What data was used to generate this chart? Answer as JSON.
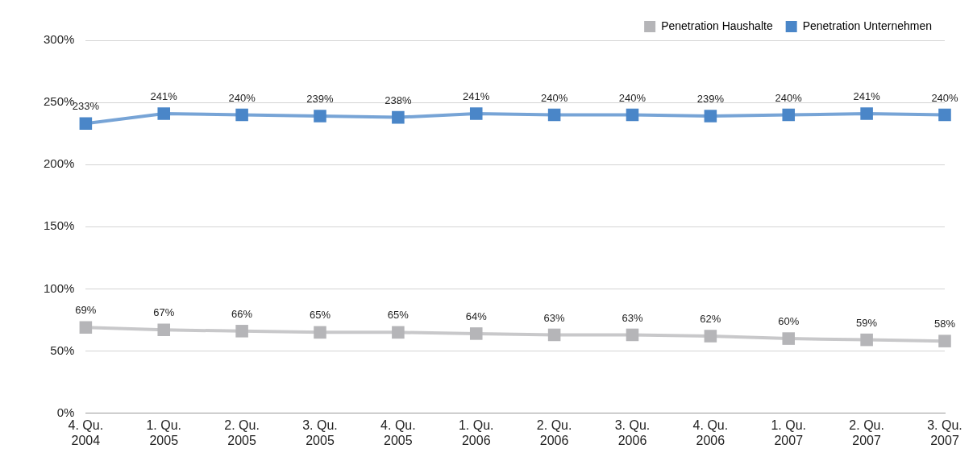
{
  "chart_data": {
    "type": "line",
    "categories": [
      "4. Qu. 2004",
      "1. Qu. 2005",
      "2. Qu. 2005",
      "3. Qu. 2005",
      "4. Qu. 2005",
      "1. Qu. 2006",
      "2. Qu. 2006",
      "3. Qu. 2006",
      "4. Qu. 2006",
      "1. Qu. 2007",
      "2. Qu. 2007",
      "3. Qu. 2007"
    ],
    "series": [
      {
        "name": "Penetration Haushalte",
        "color": "#b5b5b8",
        "values": [
          69,
          67,
          66,
          65,
          65,
          64,
          63,
          63,
          62,
          60,
          59,
          58
        ],
        "value_labels": [
          "69%",
          "67%",
          "66%",
          "65%",
          "65%",
          "64%",
          "63%",
          "63%",
          "62%",
          "60%",
          "59%",
          "58%"
        ]
      },
      {
        "name": "Penetration Unternehmen",
        "color": "#4a86c8",
        "values": [
          233,
          241,
          240,
          239,
          238,
          241,
          240,
          240,
          239,
          240,
          241,
          240
        ],
        "value_labels": [
          "233%",
          "241%",
          "240%",
          "239%",
          "238%",
          "241%",
          "240%",
          "240%",
          "239%",
          "240%",
          "241%",
          "240%"
        ]
      }
    ],
    "ylim": [
      0,
      300
    ],
    "yticks": [
      {
        "value": 0,
        "label": "0%"
      },
      {
        "value": 50,
        "label": "50%"
      },
      {
        "value": 100,
        "label": "100%"
      },
      {
        "value": 150,
        "label": "150%"
      },
      {
        "value": 200,
        "label": "200%"
      },
      {
        "value": 250,
        "label": "250%"
      },
      {
        "value": 300,
        "label": "300%"
      }
    ],
    "grid": "y",
    "legend": "top right",
    "marker": "square",
    "line_style": "solid"
  }
}
